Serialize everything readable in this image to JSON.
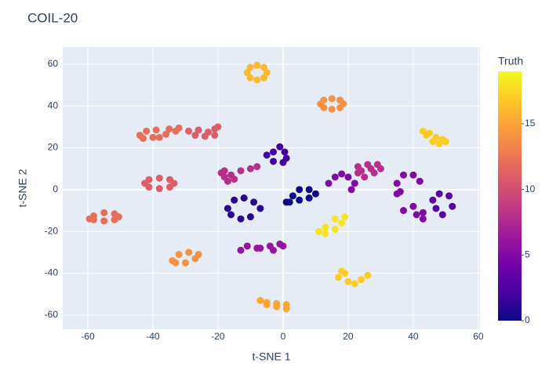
{
  "chart_data": {
    "type": "scatter",
    "title": "COIL-20",
    "x_label": "t-SNE 1",
    "y_label": "t-SNE 2",
    "colorbar_title": "Truth",
    "xlim": [
      -67.7,
      60.5
    ],
    "ylim": [
      -66.8,
      68.2
    ],
    "xticks": [
      -60,
      -40,
      -20,
      0,
      20,
      40,
      60
    ],
    "yticks": [
      -60,
      -40,
      -20,
      0,
      20,
      40,
      60
    ],
    "clim": [
      0,
      19
    ],
    "colorbar_ticks": [
      0,
      5,
      10,
      15
    ],
    "colorscale": [
      "#0d0887",
      "#46039f",
      "#7201a8",
      "#9c179e",
      "#bd3786",
      "#d8576b",
      "#ed7953",
      "#fb9f3a",
      "#fdca26",
      "#f0f921"
    ],
    "grid": true,
    "x": [
      -5,
      -5.9,
      -8,
      -10.1,
      -11,
      -10.1,
      -8,
      -5.9,
      18.5,
      17.5,
      15,
      12.5,
      11.5,
      12.5,
      15,
      17.5,
      -44,
      -42,
      -39,
      -35,
      -32,
      -33,
      -36,
      -40,
      -43,
      -38,
      -29,
      -26,
      -23,
      -21,
      -20,
      -21,
      -24,
      -27,
      43,
      45,
      47,
      49,
      50,
      48,
      46,
      44,
      -33.5,
      -34.8,
      -38,
      -41.2,
      -42.5,
      -41.2,
      -38,
      -34.8,
      -50.5,
      -51.8,
      -55,
      -58.2,
      -59.5,
      -58.2,
      -55,
      -51.8,
      -19,
      -18,
      -16,
      -15,
      -17,
      -18,
      -13,
      -10,
      -8,
      1,
      0.5,
      -1,
      -3,
      -5,
      -3,
      0,
      23,
      26,
      29,
      30,
      28,
      25,
      23,
      27,
      24,
      1,
      3,
      5,
      8,
      10,
      8,
      5,
      2,
      -17,
      -15,
      -12,
      -9,
      -7,
      -10,
      -13,
      -16,
      14,
      16,
      18,
      20,
      22,
      21,
      35,
      35,
      37,
      40,
      42,
      36,
      11,
      13,
      16,
      18,
      19,
      16,
      13,
      -34,
      -32,
      -29,
      -26,
      -27,
      -30,
      -33,
      -13,
      -11,
      -8,
      -4,
      -1,
      0,
      -3,
      -7,
      17,
      18,
      19,
      20,
      22,
      24,
      26,
      -7,
      -5,
      -2,
      1,
      1,
      -2,
      -5,
      46,
      48,
      51,
      52,
      49,
      47,
      37,
      40,
      43,
      43,
      41
    ],
    "y": [
      56,
      58.5,
      59.5,
      58.5,
      56,
      53.5,
      52.5,
      53.5,
      41,
      42.8,
      43.5,
      42.8,
      41,
      39.2,
      38.5,
      39.2,
      26,
      28,
      28.5,
      29,
      29.5,
      28,
      26.5,
      25,
      24.5,
      25,
      28,
      28.5,
      27.5,
      29,
      30,
      26,
      25.5,
      26,
      28,
      27,
      25,
      24,
      23,
      22,
      23,
      26,
      3,
      4.8,
      5.5,
      4.8,
      3,
      1.2,
      0.5,
      1.2,
      -13,
      -11.6,
      -11,
      -12.6,
      -14,
      -14.4,
      -15,
      -14.4,
      8,
      9,
      7,
      5,
      4,
      6,
      9,
      10,
      11,
      15,
      18,
      20.5,
      18,
      16.5,
      13.5,
      13,
      11,
      12,
      12,
      10,
      8,
      6,
      8,
      10,
      9,
      -6,
      -3,
      0,
      0,
      -2,
      -4,
      -5,
      -6,
      -9,
      -5,
      -4,
      -6,
      -9,
      -13,
      -14,
      -12,
      3,
      6,
      7.5,
      6,
      3,
      0,
      -2,
      3,
      7,
      7,
      4,
      -1,
      -20,
      -21,
      -19,
      -16,
      -13,
      -14,
      -18,
      -34,
      -31,
      -30,
      -31,
      -33,
      -35,
      -35,
      -29,
      -27,
      -28,
      -27,
      -26,
      -27,
      -29,
      -28,
      -42,
      -39,
      -40,
      -44,
      -45,
      -43,
      -41,
      -53,
      -54,
      -54.5,
      -55,
      -57,
      -56,
      -55,
      -5,
      -2,
      -3,
      -8,
      -12,
      -9,
      -10,
      -8,
      -11,
      -14,
      -12
    ],
    "truth": [
      16,
      16,
      16,
      16,
      16,
      16,
      16,
      16,
      14,
      14,
      14,
      14,
      14,
      14,
      14,
      14,
      12,
      12,
      12,
      12,
      12,
      12,
      12,
      12,
      12,
      12,
      11,
      11,
      11,
      11,
      11,
      11,
      11,
      11,
      17,
      17,
      17,
      17,
      17,
      17,
      17,
      17,
      11,
      11,
      11,
      11,
      11,
      11,
      11,
      11,
      12,
      12,
      12,
      12,
      12,
      12,
      12,
      12,
      8,
      8,
      8,
      8,
      8,
      8,
      8,
      8,
      8,
      2,
      2,
      2,
      2,
      2,
      2,
      2,
      8,
      8,
      8,
      8,
      8,
      8,
      8,
      8,
      8,
      0,
      0,
      0,
      0,
      0,
      0,
      0,
      0,
      1,
      1,
      1,
      1,
      1,
      1,
      1,
      1,
      5,
      5,
      5,
      5,
      5,
      5,
      5,
      5,
      5,
      5,
      5,
      5,
      18,
      18,
      18,
      18,
      18,
      18,
      18,
      14,
      14,
      14,
      14,
      14,
      14,
      14,
      6,
      6,
      6,
      6,
      6,
      6,
      6,
      6,
      17,
      17,
      17,
      17,
      17,
      17,
      17,
      15,
      15,
      15,
      15,
      15,
      15,
      15,
      3,
      3,
      3,
      3,
      3,
      3,
      5,
      5,
      5,
      5,
      5
    ]
  }
}
